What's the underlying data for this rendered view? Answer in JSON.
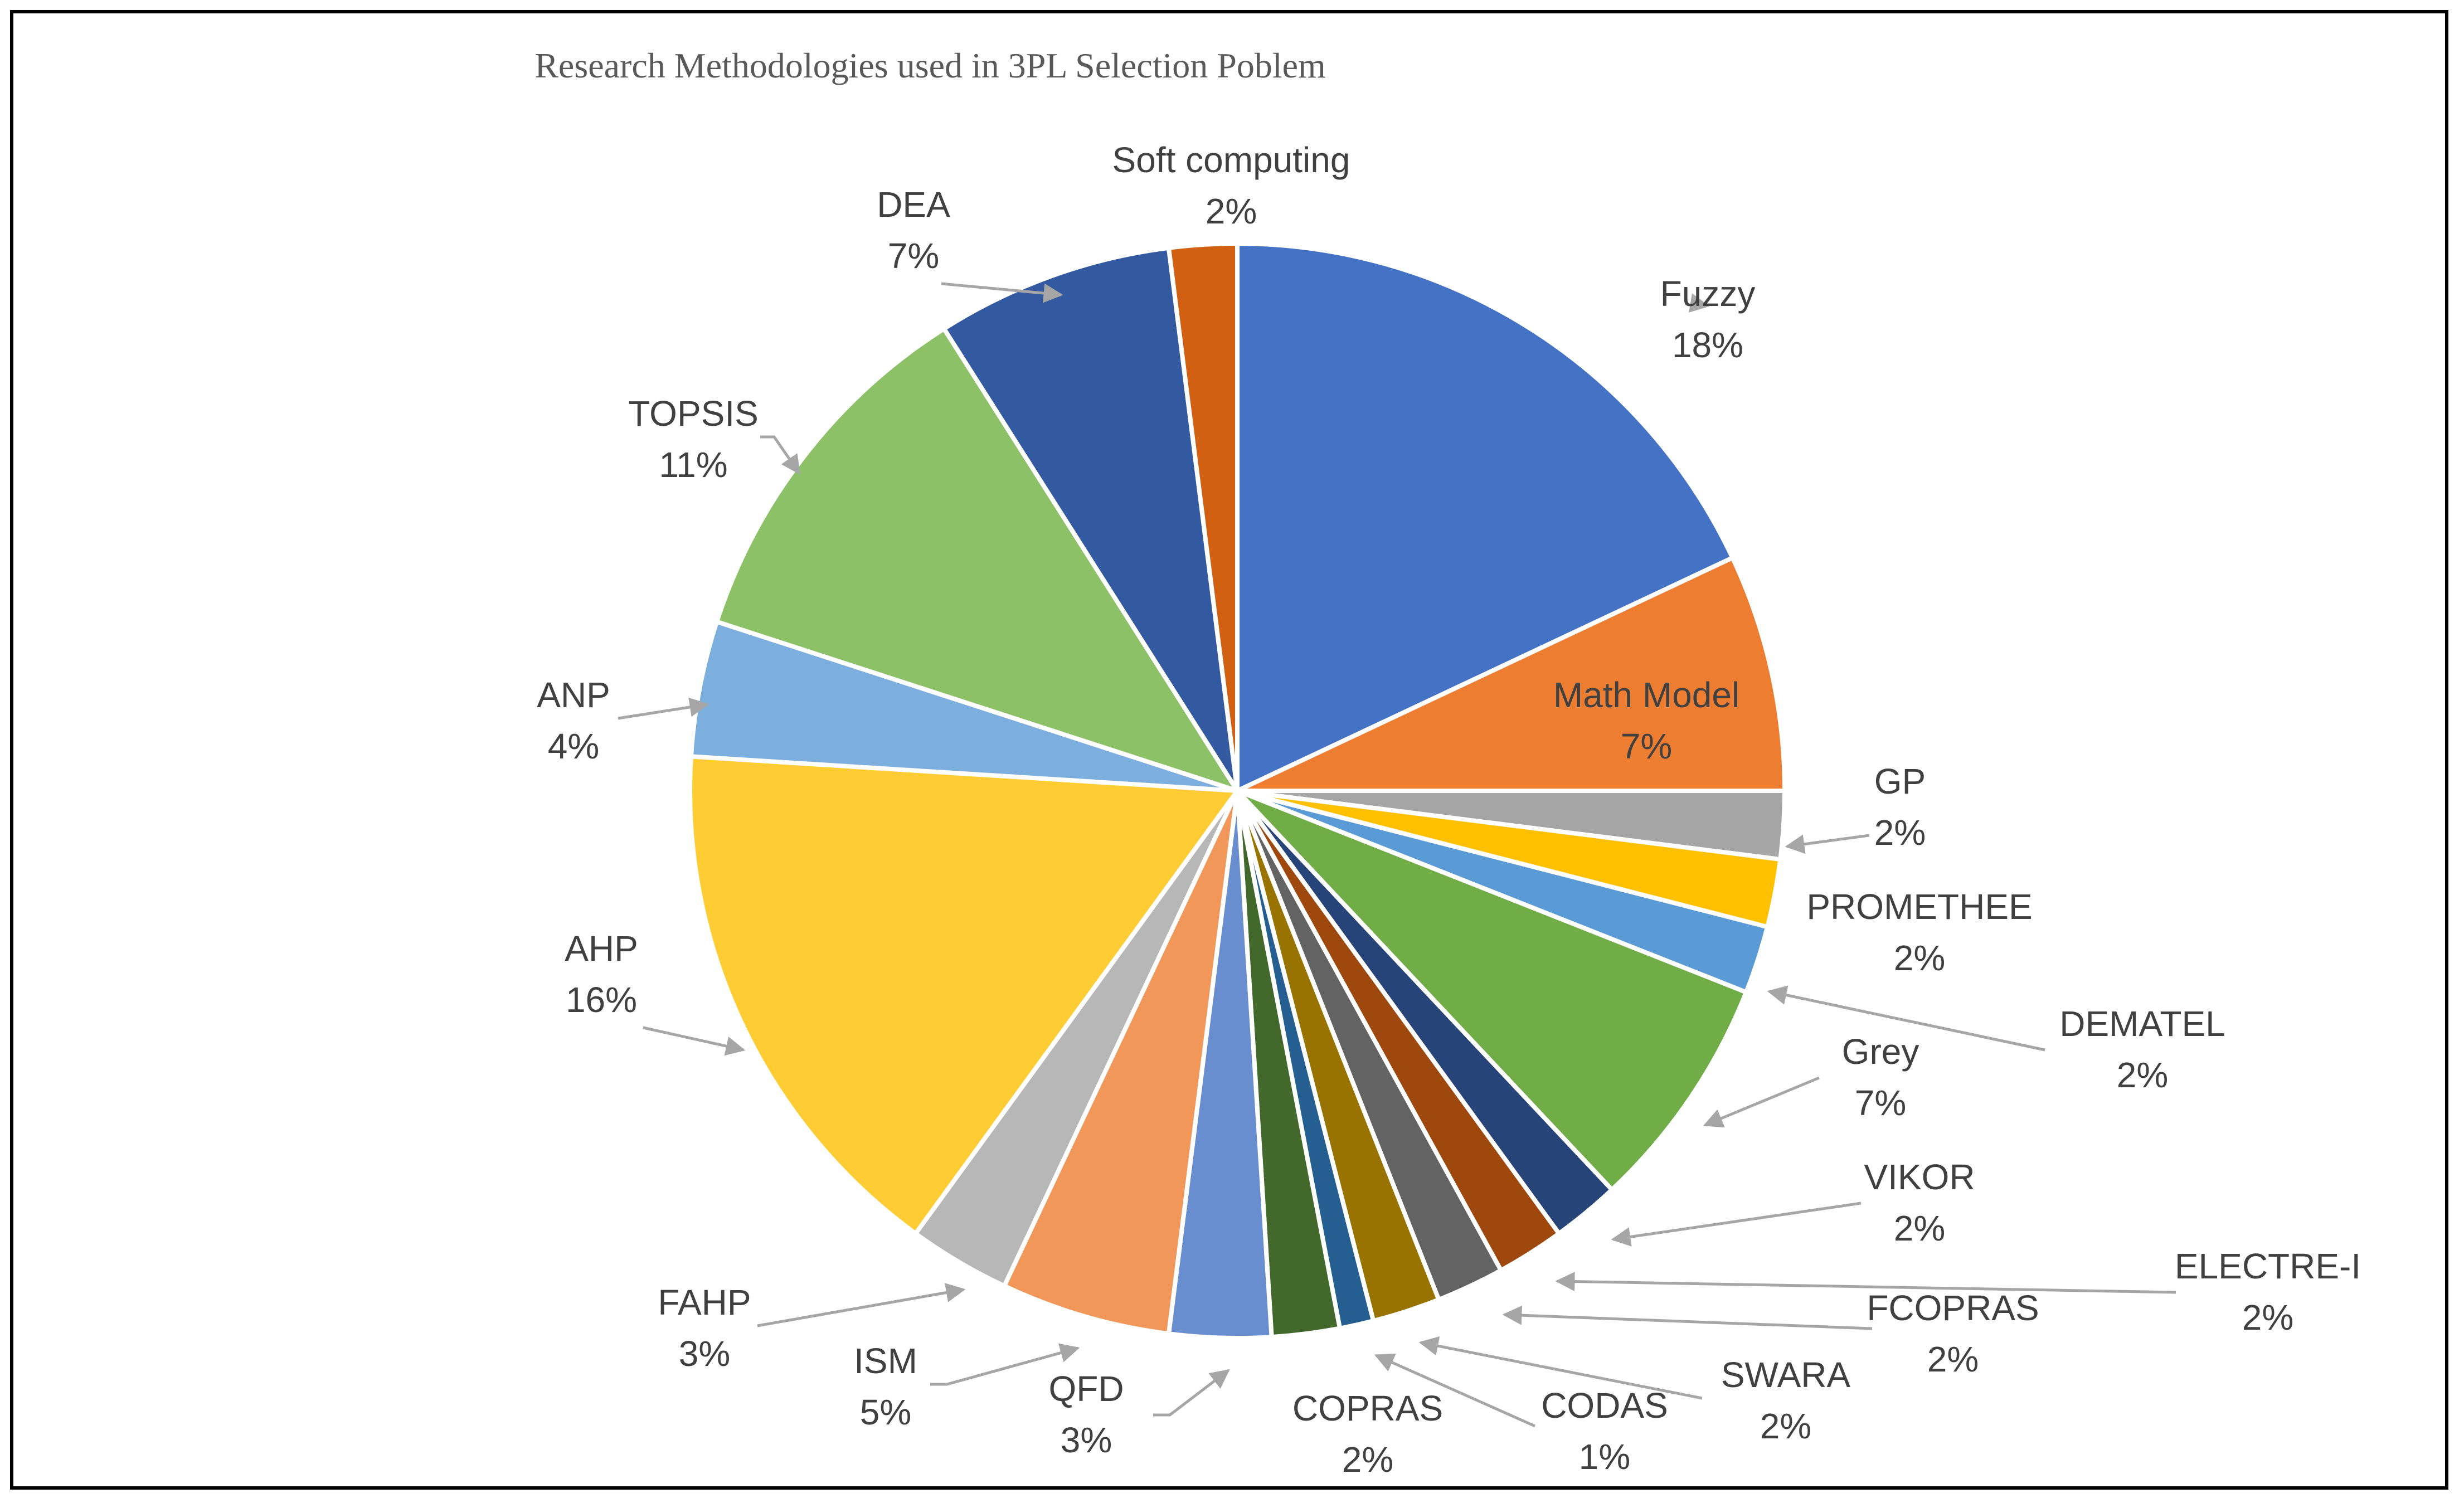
{
  "chart_data": {
    "type": "pie",
    "title": "Research Methodologies used in 3PL Selection Poblem",
    "slices": [
      {
        "label": "Fuzzy",
        "value": 18,
        "value_label": "18%",
        "color": "#4472C4"
      },
      {
        "label": "Math Model",
        "value": 7,
        "value_label": "7%",
        "color": "#ED7D31"
      },
      {
        "label": "GP",
        "value": 2,
        "value_label": "2%",
        "color": "#A5A5A5"
      },
      {
        "label": "PROMETHEE",
        "value": 2,
        "value_label": "2%",
        "color": "#FFC000"
      },
      {
        "label": "DEMATEL",
        "value": 2,
        "value_label": "2%",
        "color": "#5B9BD5"
      },
      {
        "label": "Grey",
        "value": 7,
        "value_label": "7%",
        "color": "#70AD47"
      },
      {
        "label": "VIKOR",
        "value": 2,
        "value_label": "2%",
        "color": "#264478"
      },
      {
        "label": "ELECTRE-I",
        "value": 2,
        "value_label": "2%",
        "color": "#9E480E"
      },
      {
        "label": "FCOPRAS",
        "value": 2,
        "value_label": "2%",
        "color": "#636363"
      },
      {
        "label": "SWARA",
        "value": 2,
        "value_label": "2%",
        "color": "#997300"
      },
      {
        "label": "CODAS",
        "value": 1,
        "value_label": "1%",
        "color": "#255E91"
      },
      {
        "label": "COPRAS",
        "value": 2,
        "value_label": "2%",
        "color": "#43682B"
      },
      {
        "label": "QFD",
        "value": 3,
        "value_label": "3%",
        "color": "#698ED0"
      },
      {
        "label": "ISM",
        "value": 5,
        "value_label": "5%",
        "color": "#F1975A"
      },
      {
        "label": "FAHP",
        "value": 3,
        "value_label": "3%",
        "color": "#B7B7B7"
      },
      {
        "label": "AHP",
        "value": 16,
        "value_label": "16%",
        "color": "#FFCD33"
      },
      {
        "label": "ANP",
        "value": 4,
        "value_label": "4%",
        "color": "#7CAFDD"
      },
      {
        "label": "TOPSIS",
        "value": 11,
        "value_label": "11%",
        "color": "#8CC168"
      },
      {
        "label": "DEA",
        "value": 7,
        "value_label": "7%",
        "color": "#335AA1"
      },
      {
        "label": "Soft computing",
        "value": 2,
        "value_label": "2%",
        "color": "#D26012"
      }
    ],
    "legend": "none"
  }
}
